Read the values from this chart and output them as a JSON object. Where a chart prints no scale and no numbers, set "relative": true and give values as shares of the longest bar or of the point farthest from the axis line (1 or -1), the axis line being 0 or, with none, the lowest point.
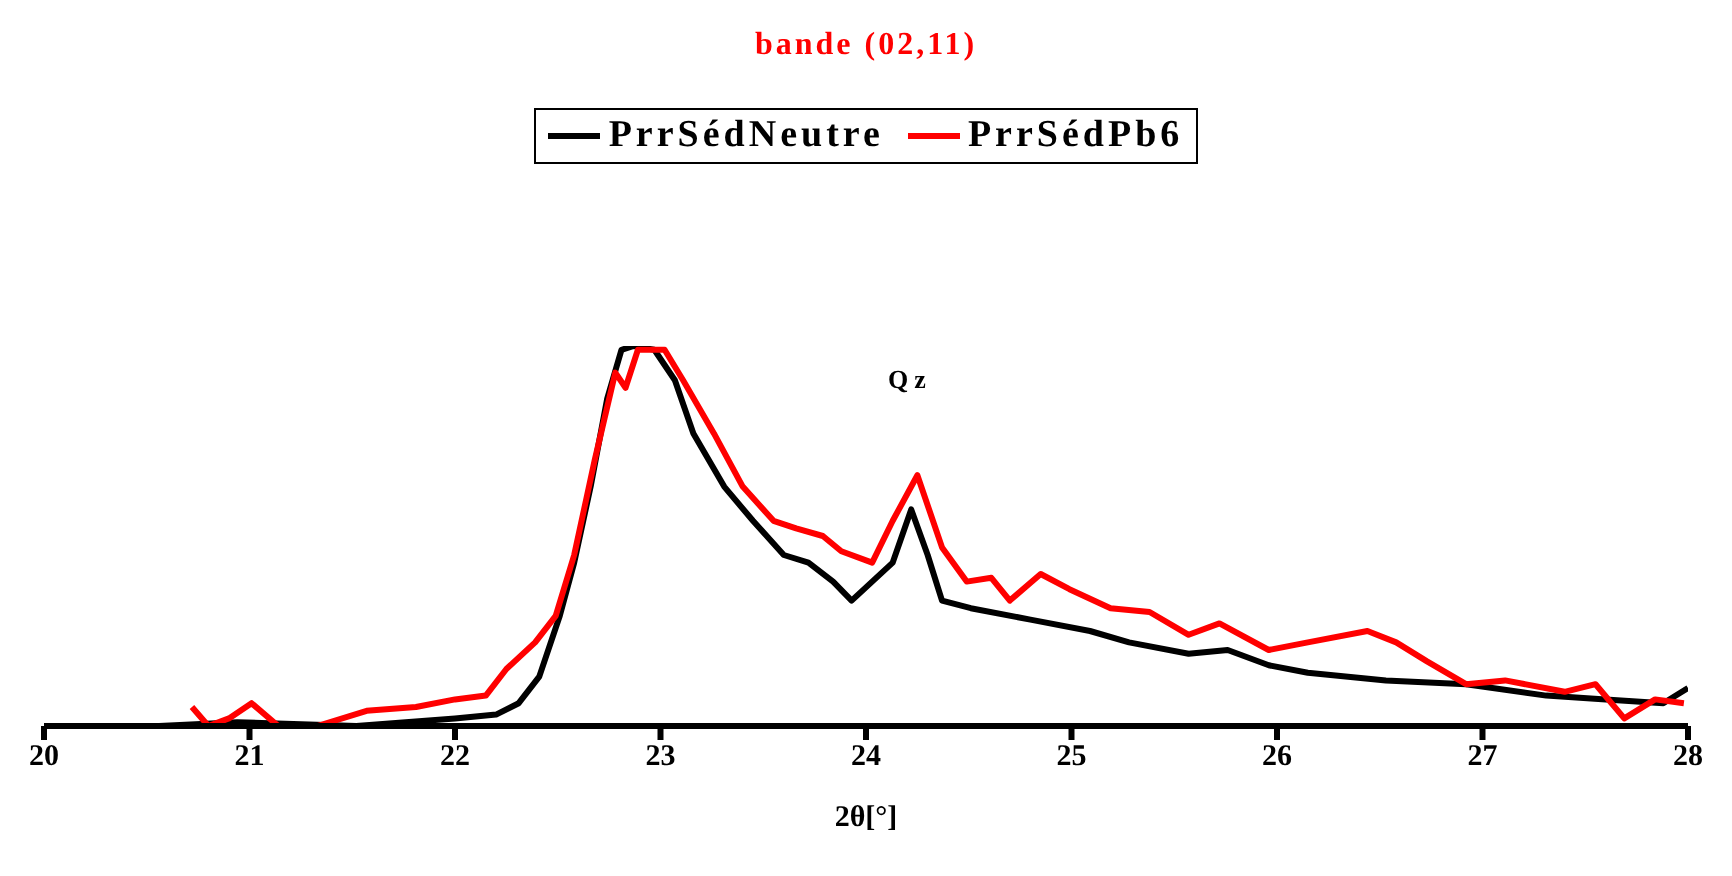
{
  "chart_data": {
    "type": "line",
    "title": "bande (02,11)",
    "xlabel": "2θ[°]",
    "relative": true,
    "xlim": [
      20,
      28
    ],
    "xticks": [
      20,
      21,
      22,
      23,
      24,
      25,
      26,
      27,
      28
    ],
    "legend": "top",
    "grid": false,
    "marker": "none",
    "line_style": "solid",
    "annotations": [
      "Qz"
    ],
    "series": [
      {
        "name": "PrrSédNeutre",
        "color": "#000000",
        "x": [
          20.0,
          20.56,
          20.94,
          21.52,
          22.0,
          22.2,
          22.31,
          22.41,
          22.51,
          22.58,
          22.66,
          22.74,
          22.81,
          22.87,
          22.97,
          23.07,
          23.16,
          23.31,
          23.45,
          23.6,
          23.72,
          23.84,
          23.93,
          24.03,
          24.13,
          24.22,
          24.3,
          24.37,
          24.51,
          24.8,
          25.09,
          25.28,
          25.57,
          25.76,
          25.96,
          26.15,
          26.53,
          26.92,
          27.31,
          27.6,
          27.88,
          28.0
        ],
        "values": [
          0,
          0,
          0.01,
          0,
          0.02,
          0.03,
          0.06,
          0.13,
          0.29,
          0.43,
          0.63,
          0.86,
          0.99,
          1,
          0.99,
          0.91,
          0.77,
          0.63,
          0.54,
          0.45,
          0.43,
          0.38,
          0.33,
          0.38,
          0.43,
          0.57,
          0.45,
          0.33,
          0.31,
          0.28,
          0.25,
          0.22,
          0.19,
          0.2,
          0.16,
          0.14,
          0.12,
          0.11,
          0.08,
          0.07,
          0.06,
          0.1
        ]
      },
      {
        "name": "PrrSédPb6",
        "color": "#ff0000",
        "x": [
          20.72,
          20.8,
          20.9,
          21.01,
          21.14,
          21.33,
          21.57,
          21.81,
          22.0,
          22.15,
          22.25,
          22.39,
          22.49,
          22.58,
          22.68,
          22.78,
          22.83,
          22.89,
          23.02,
          23.11,
          23.26,
          23.4,
          23.55,
          23.66,
          23.79,
          23.88,
          24.03,
          24.13,
          24.25,
          24.37,
          24.49,
          24.61,
          24.7,
          24.85,
          24.99,
          25.19,
          25.38,
          25.57,
          25.72,
          25.96,
          26.15,
          26.44,
          26.58,
          26.73,
          26.92,
          27.11,
          27.4,
          27.55,
          27.69,
          27.84,
          27.98
        ],
        "values": [
          0.05,
          0,
          0.02,
          0.06,
          0,
          0,
          0.04,
          0.05,
          0.07,
          0.08,
          0.15,
          0.22,
          0.29,
          0.45,
          0.7,
          0.93,
          0.89,
          0.99,
          0.99,
          0.91,
          0.77,
          0.63,
          0.54,
          0.52,
          0.5,
          0.46,
          0.43,
          0.54,
          0.66,
          0.47,
          0.38,
          0.39,
          0.33,
          0.4,
          0.36,
          0.31,
          0.3,
          0.24,
          0.27,
          0.2,
          0.22,
          0.25,
          0.22,
          0.17,
          0.11,
          0.12,
          0.09,
          0.11,
          0.02,
          0.07,
          0.06
        ]
      }
    ]
  }
}
